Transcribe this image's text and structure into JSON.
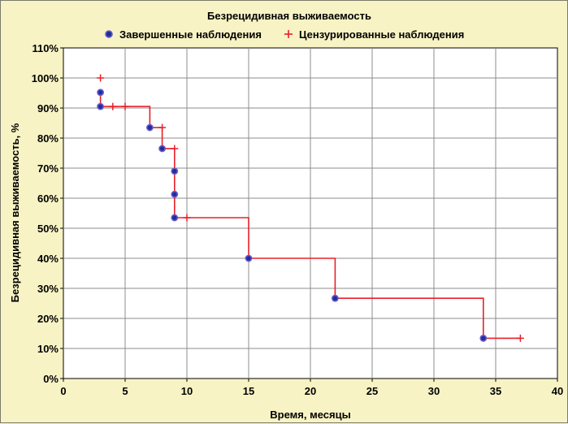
{
  "chart_data": {
    "type": "line",
    "title": "Безрецидивная выживаемость",
    "xlabel": "Время, месяцы",
    "ylabel": "Безрецидивная выживаемость, %",
    "xlim": [
      0,
      40
    ],
    "ylim": [
      0,
      110
    ],
    "x_ticks": [
      0,
      5,
      10,
      15,
      20,
      25,
      30,
      35,
      40
    ],
    "y_ticks": [
      0,
      10,
      20,
      30,
      40,
      50,
      60,
      70,
      80,
      90,
      100,
      110
    ],
    "y_tick_suffix": "%",
    "grid": true,
    "legend_position": "top",
    "colors": {
      "background": "#f7f3c4",
      "plot_background": "#ffffff",
      "step_line": "#e8202a",
      "completed_marker_fill": "#1f2f9a",
      "completed_marker_edge": "#6a5acd",
      "censored_marker": "#e8202a",
      "grid": "#8c8c8c"
    },
    "step_line": {
      "x": [
        3,
        3,
        7,
        7,
        8,
        8,
        9,
        9,
        9,
        9,
        15,
        15,
        22,
        22,
        34,
        34,
        37
      ],
      "y": [
        95.2,
        90.5,
        90.5,
        83.5,
        83.5,
        76.5,
        76.5,
        69.0,
        61.3,
        53.5,
        53.5,
        40.0,
        40.0,
        26.7,
        26.7,
        13.4,
        13.4
      ]
    },
    "series": [
      {
        "name": "Завершенные наблюдения",
        "marker": "circle",
        "x": [
          3,
          3,
          7,
          8,
          9,
          9,
          9,
          15,
          22,
          34
        ],
        "y": [
          95.2,
          90.5,
          83.5,
          76.5,
          69.0,
          61.3,
          53.5,
          40.0,
          26.7,
          13.4
        ]
      },
      {
        "name": "Цензурированные наблюдения",
        "marker": "plus",
        "x": [
          3,
          4,
          5,
          8,
          9,
          10,
          37
        ],
        "y": [
          100,
          90.5,
          90.5,
          83.5,
          76.5,
          53.5,
          13.4
        ]
      }
    ]
  }
}
